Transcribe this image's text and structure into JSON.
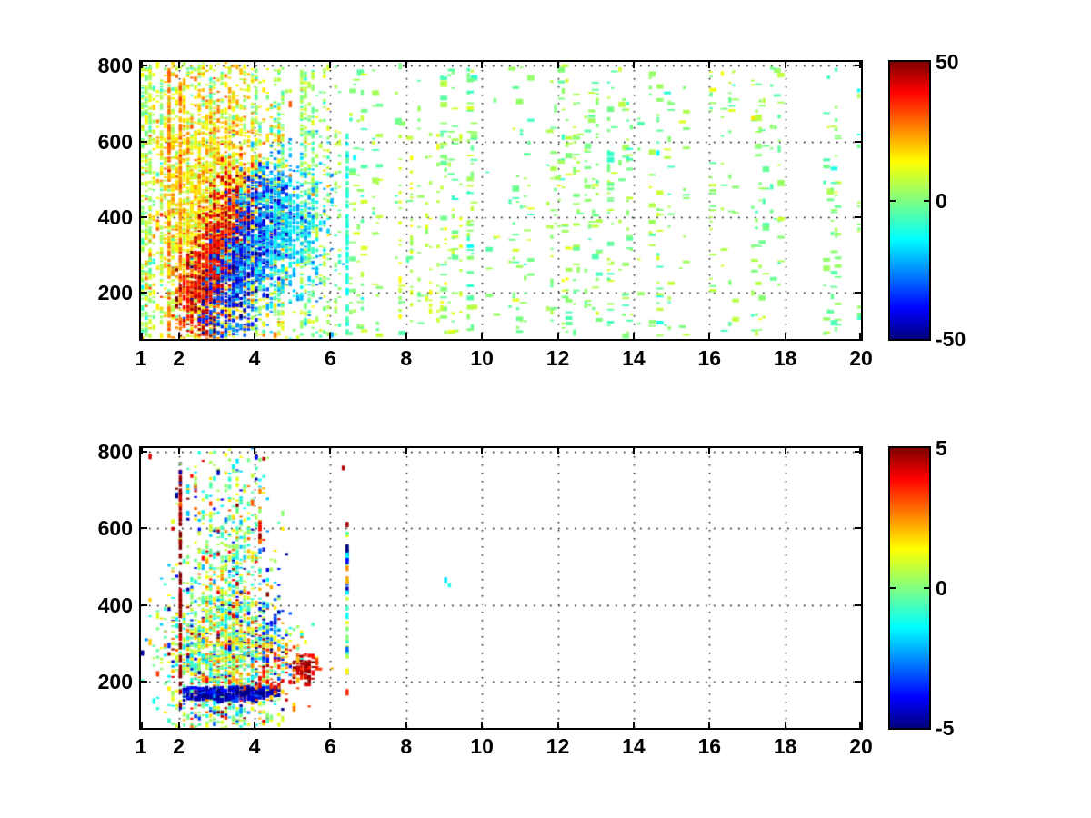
{
  "figure": {
    "background": "#ffffff",
    "text_color": "#000000",
    "axis_color": "#000000",
    "grid_style": "dotted"
  },
  "colormap": {
    "name": "jet",
    "gradient_stops_bottom_to_top": [
      "#00007f",
      "#0000ff",
      "#00ffff",
      "#80ff80",
      "#ffff00",
      "#ff0000",
      "#7f0000"
    ],
    "gradient_positions_pct": [
      0,
      11,
      36,
      50,
      64,
      89,
      100
    ]
  },
  "chart_data": [
    {
      "id": "top",
      "type": "heatmap",
      "title": "",
      "xlabel": "",
      "ylabel": "",
      "xlim": [
        1,
        20
      ],
      "ylim": [
        78,
        810
      ],
      "x_ticks": [
        1,
        2,
        4,
        6,
        8,
        10,
        12,
        14,
        16,
        18,
        20
      ],
      "x_tick_labels": [
        "1",
        "2",
        "4",
        "6",
        "8",
        "10",
        "12",
        "14",
        "16",
        "18",
        "20"
      ],
      "y_ticks": [
        200,
        400,
        600,
        800
      ],
      "y_tick_labels": [
        "200",
        "400",
        "600",
        "800"
      ],
      "grid": true,
      "colorbar": {
        "min": -50,
        "max": 50,
        "tick_values": [
          50,
          0,
          -50
        ],
        "tick_labels": [
          "50",
          "0",
          "-50"
        ]
      },
      "cell": {
        "x_step": 0.1
      },
      "seed": 20107,
      "clusters": [
        {
          "kind": "columns",
          "name": "left-speckle",
          "x": [
            1.0,
            6.3
          ],
          "ncols": 50,
          "per_col": [
            12,
            48
          ],
          "y": [
            85,
            800
          ],
          "value": [
            2,
            5.5
          ]
        },
        {
          "kind": "gauss",
          "name": "yellow-cloud",
          "cx": 2.9,
          "cy": 410,
          "sx": 0.85,
          "sy": 200,
          "n": 2600,
          "value": [
            15,
            7
          ]
        },
        {
          "kind": "vline",
          "name": "orange-line-1",
          "x": 1.79,
          "y": [
            110,
            790
          ],
          "n": 60,
          "value": [
            24,
            5
          ]
        },
        {
          "kind": "vline",
          "name": "orange-line-2",
          "x": 2.04,
          "y": [
            120,
            790
          ],
          "n": 60,
          "value": [
            24,
            5
          ]
        },
        {
          "kind": "band",
          "name": "red-chirp-core",
          "from": [
            2.35,
            130
          ],
          "to": [
            3.6,
            460
          ],
          "sx": 0.3,
          "jy": 55,
          "n": 900,
          "value": [
            38,
            8
          ]
        },
        {
          "kind": "band",
          "name": "blue-chirp-core",
          "from": [
            3.15,
            130
          ],
          "to": [
            4.5,
            470
          ],
          "sx": 0.36,
          "jy": 55,
          "n": 950,
          "value": [
            -33,
            9
          ]
        },
        {
          "kind": "gauss",
          "name": "cyan-fringe",
          "cx": 4.85,
          "cy": 370,
          "sx": 0.5,
          "sy": 115,
          "n": 550,
          "value": [
            -16,
            6
          ]
        },
        {
          "kind": "vline",
          "name": "cyan-tall-line",
          "x": 6.45,
          "y": [
            95,
            620
          ],
          "n": 60,
          "value": [
            -9,
            3
          ]
        },
        {
          "kind": "columns",
          "name": "yellow-columns",
          "x": [
            7.7,
            9.6
          ],
          "ncols": 7,
          "per_col": [
            10,
            26
          ],
          "y": [
            90,
            620
          ],
          "value": [
            7,
            4
          ]
        },
        {
          "kind": "columns",
          "name": "right-speckle",
          "x": [
            6.3,
            20
          ],
          "ncols": 88,
          "per_col": [
            3,
            16
          ],
          "y": [
            85,
            800
          ],
          "value": [
            1,
            4.5
          ],
          "wide": true
        }
      ]
    },
    {
      "id": "bottom",
      "type": "heatmap",
      "title": "",
      "xlabel": "",
      "ylabel": "",
      "xlim": [
        1,
        20
      ],
      "ylim": [
        78,
        810
      ],
      "x_ticks": [
        1,
        2,
        4,
        6,
        8,
        10,
        12,
        14,
        16,
        18,
        20
      ],
      "x_tick_labels": [
        "1",
        "2",
        "4",
        "6",
        "8",
        "10",
        "12",
        "14",
        "16",
        "18",
        "20"
      ],
      "y_ticks": [
        200,
        400,
        600,
        800
      ],
      "y_tick_labels": [
        "200",
        "400",
        "600",
        "800"
      ],
      "grid": true,
      "colorbar": {
        "min": -5,
        "max": 5,
        "tick_values": [
          5,
          0,
          -5
        ],
        "tick_labels": [
          "5",
          "0",
          "-5"
        ]
      },
      "cell": {
        "x_step": 0.1
      },
      "seed": 4242,
      "clusters": [
        {
          "kind": "gauss",
          "name": "main-cloud",
          "cx": 3.2,
          "cy": 265,
          "sx": 0.78,
          "sy": 108,
          "n": 1500,
          "value": [
            0.3,
            1.4
          ],
          "outliers": [
            0.12,
            4.2
          ]
        },
        {
          "kind": "gauss",
          "name": "upper-plume",
          "cx": 3.4,
          "cy": 560,
          "sx": 0.55,
          "sy": 140,
          "n": 430,
          "value": [
            0,
            1.3
          ],
          "outliers": [
            0.08,
            4.2
          ]
        },
        {
          "kind": "hband",
          "name": "navy-band",
          "x": [
            2.15,
            4.6
          ],
          "y": [
            150,
            185
          ],
          "n": 220,
          "value": [
            -4.3,
            0.7
          ],
          "wide": true
        },
        {
          "kind": "vline",
          "name": "dark-red-line",
          "x": 2.05,
          "y": [
            125,
            760
          ],
          "n": 55,
          "value": [
            4.8,
            0.3
          ]
        },
        {
          "kind": "gauss",
          "name": "red-blob",
          "cx": 5.32,
          "cy": 235,
          "sx": 0.15,
          "sy": 26,
          "n": 55,
          "value": [
            4.5,
            0.6
          ],
          "wide": true
        },
        {
          "kind": "gauss",
          "name": "orange-patch",
          "cx": 4.6,
          "cy": 250,
          "sx": 0.4,
          "sy": 55,
          "n": 90,
          "value": [
            2.8,
            1.0
          ]
        },
        {
          "kind": "gauss",
          "name": "blue-patch",
          "cx": 4.45,
          "cy": 335,
          "sx": 0.3,
          "sy": 60,
          "n": 60,
          "value": [
            -3.4,
            1.0
          ]
        },
        {
          "kind": "vline",
          "name": "mixed-line",
          "x": 6.45,
          "y": [
            170,
            615
          ],
          "n": 42,
          "value": [
            0,
            3.2
          ]
        },
        {
          "kind": "vline",
          "name": "orange-stripe",
          "x": 4.17,
          "y": [
            565,
            618
          ],
          "n": 12,
          "value": [
            3.2,
            0.9
          ]
        },
        {
          "kind": "columns",
          "name": "upper-left-specks",
          "x": [
            1.9,
            2.5
          ],
          "ncols": 5,
          "per_col": [
            3,
            8
          ],
          "y": [
            620,
            770
          ],
          "value": [
            0,
            3
          ]
        },
        {
          "kind": "points",
          "name": "isolated-points",
          "points": [
            [
              9.05,
              465,
              -1.5
            ],
            [
              9.1,
              452,
              -1
            ],
            [
              6.3,
              758,
              4.5
            ],
            [
              2.33,
              737,
              3.6
            ],
            [
              4.2,
              782,
              4.4
            ],
            [
              1.25,
              788,
              4.2
            ],
            [
              5.0,
              128,
              2.5
            ],
            [
              4.15,
              190,
              4.2
            ],
            [
              4.18,
              205,
              3.9
            ],
            [
              6.45,
              610,
              4.7
            ],
            [
              5.55,
              222,
              3.8
            ],
            [
              5.6,
              250,
              3.2
            ]
          ]
        }
      ]
    }
  ]
}
